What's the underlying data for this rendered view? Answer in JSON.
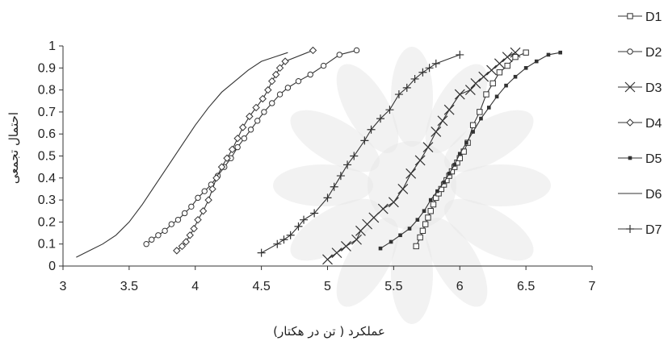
{
  "chart_data": {
    "type": "line",
    "xlabel": "عملکرد ( تن در هکتار)",
    "ylabel": "احتمال تجمعی",
    "xlim": [
      3,
      7
    ],
    "ylim": [
      0,
      1
    ],
    "xticks": [
      "3",
      "3.5",
      "4",
      "4.5",
      "5",
      "5.5",
      "6",
      "6.5",
      "7"
    ],
    "yticks": [
      "0",
      "0.1",
      "0.2",
      "0.3",
      "0.4",
      "0.5",
      "0.6",
      "0.7",
      "0.8",
      "0.9",
      "1"
    ],
    "grid": false,
    "legend_position": "right",
    "series": [
      {
        "name": "D1",
        "marker": "square",
        "x": [
          5.67,
          5.7,
          5.72,
          5.74,
          5.76,
          5.78,
          5.8,
          5.82,
          5.84,
          5.86,
          5.88,
          5.9,
          5.92,
          5.94,
          5.96,
          5.98,
          6.0,
          6.03,
          6.06,
          6.1,
          6.15,
          6.2,
          6.25,
          6.3,
          6.36,
          6.42,
          6.5
        ],
        "y": [
          0.09,
          0.13,
          0.16,
          0.19,
          0.22,
          0.25,
          0.28,
          0.31,
          0.33,
          0.35,
          0.37,
          0.39,
          0.41,
          0.43,
          0.45,
          0.47,
          0.49,
          0.52,
          0.56,
          0.64,
          0.7,
          0.78,
          0.83,
          0.88,
          0.91,
          0.95,
          0.97
        ]
      },
      {
        "name": "D2",
        "marker": "circle",
        "x": [
          3.63,
          3.67,
          3.72,
          3.77,
          3.82,
          3.87,
          3.92,
          3.97,
          4.02,
          4.07,
          4.12,
          4.17,
          4.22,
          4.27,
          4.32,
          4.37,
          4.42,
          4.47,
          4.52,
          4.58,
          4.64,
          4.7,
          4.78,
          4.87,
          4.97,
          5.09,
          5.22
        ],
        "y": [
          0.1,
          0.12,
          0.14,
          0.16,
          0.19,
          0.21,
          0.24,
          0.27,
          0.31,
          0.34,
          0.37,
          0.41,
          0.45,
          0.49,
          0.54,
          0.58,
          0.62,
          0.66,
          0.7,
          0.74,
          0.78,
          0.81,
          0.84,
          0.87,
          0.91,
          0.96,
          0.98
        ]
      },
      {
        "name": "D3",
        "marker": "x",
        "x": [
          5.0,
          5.07,
          5.14,
          5.22,
          5.25,
          5.3,
          5.35,
          5.42,
          5.5,
          5.57,
          5.63,
          5.7,
          5.76,
          5.82,
          5.87,
          5.92,
          6.0,
          6.08,
          6.12,
          6.18,
          6.24,
          6.3,
          6.36,
          6.42
        ],
        "y": [
          0.03,
          0.06,
          0.09,
          0.12,
          0.16,
          0.19,
          0.22,
          0.26,
          0.29,
          0.35,
          0.42,
          0.48,
          0.54,
          0.61,
          0.66,
          0.71,
          0.78,
          0.8,
          0.83,
          0.86,
          0.89,
          0.92,
          0.95,
          0.97
        ]
      },
      {
        "name": "D4",
        "marker": "diamond",
        "x": [
          3.86,
          3.9,
          3.93,
          3.96,
          3.99,
          4.02,
          4.06,
          4.1,
          4.13,
          4.16,
          4.2,
          4.24,
          4.28,
          4.32,
          4.36,
          4.41,
          4.46,
          4.51,
          4.55,
          4.58,
          4.61,
          4.64,
          4.68,
          4.89
        ],
        "y": [
          0.07,
          0.09,
          0.11,
          0.14,
          0.17,
          0.21,
          0.25,
          0.3,
          0.35,
          0.4,
          0.45,
          0.49,
          0.53,
          0.58,
          0.63,
          0.68,
          0.72,
          0.76,
          0.8,
          0.84,
          0.87,
          0.9,
          0.93,
          0.98
        ]
      },
      {
        "name": "D5",
        "marker": "dot",
        "x": [
          5.4,
          5.48,
          5.55,
          5.62,
          5.68,
          5.73,
          5.78,
          5.83,
          5.88,
          5.92,
          5.96,
          6.0,
          6.05,
          6.1,
          6.16,
          6.22,
          6.28,
          6.35,
          6.42,
          6.5,
          6.58,
          6.67,
          6.76
        ],
        "y": [
          0.08,
          0.11,
          0.14,
          0.17,
          0.21,
          0.25,
          0.3,
          0.34,
          0.38,
          0.42,
          0.46,
          0.51,
          0.56,
          0.61,
          0.67,
          0.72,
          0.77,
          0.82,
          0.86,
          0.9,
          0.93,
          0.96,
          0.97
        ]
      },
      {
        "name": "D6",
        "marker": "none",
        "x": [
          3.1,
          3.2,
          3.3,
          3.4,
          3.5,
          3.6,
          3.7,
          3.8,
          3.9,
          4.0,
          4.1,
          4.2,
          4.3,
          4.4,
          4.5,
          4.6,
          4.7
        ],
        "y": [
          0.04,
          0.07,
          0.1,
          0.14,
          0.2,
          0.28,
          0.37,
          0.46,
          0.55,
          0.64,
          0.72,
          0.79,
          0.84,
          0.89,
          0.93,
          0.95,
          0.97
        ]
      },
      {
        "name": "D7",
        "marker": "plus",
        "x": [
          4.5,
          4.62,
          4.67,
          4.72,
          4.78,
          4.82,
          4.9,
          5.0,
          5.05,
          5.1,
          5.15,
          5.2,
          5.28,
          5.33,
          5.4,
          5.47,
          5.54,
          5.6,
          5.66,
          5.72,
          5.77,
          5.82,
          6.0
        ],
        "y": [
          0.06,
          0.1,
          0.12,
          0.14,
          0.18,
          0.21,
          0.24,
          0.31,
          0.36,
          0.41,
          0.46,
          0.5,
          0.57,
          0.62,
          0.67,
          0.71,
          0.78,
          0.81,
          0.85,
          0.88,
          0.9,
          0.92,
          0.96
        ]
      }
    ]
  }
}
